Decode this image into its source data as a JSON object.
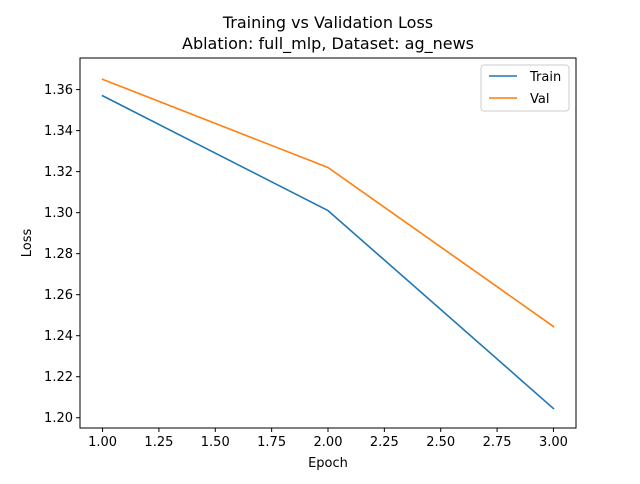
{
  "chart_data": {
    "type": "line",
    "title": "Training vs Validation Loss",
    "subtitle": "Ablation: full_mlp, Dataset: ag_news",
    "xlabel": "Epoch",
    "ylabel": "Loss",
    "x": [
      1.0,
      2.0,
      3.0
    ],
    "series": [
      {
        "name": "Train",
        "color": "#1f77b4",
        "values": [
          1.357,
          1.301,
          1.2045
        ]
      },
      {
        "name": "Val",
        "color": "#ff7f0e",
        "values": [
          1.365,
          1.322,
          1.2445
        ]
      }
    ],
    "xlim": [
      0.9,
      3.1
    ],
    "ylim": [
      1.195,
      1.3754
    ],
    "xticks": [
      1.0,
      1.25,
      1.5,
      1.75,
      2.0,
      2.25,
      2.5,
      2.75,
      3.0
    ],
    "xtick_labels": [
      "1.00",
      "1.25",
      "1.50",
      "1.75",
      "2.00",
      "2.25",
      "2.50",
      "2.75",
      "3.00"
    ],
    "yticks": [
      1.2,
      1.22,
      1.24,
      1.26,
      1.28,
      1.3,
      1.32,
      1.34,
      1.36
    ],
    "ytick_labels": [
      "1.20",
      "1.22",
      "1.24",
      "1.26",
      "1.28",
      "1.30",
      "1.32",
      "1.34",
      "1.36"
    ],
    "grid": false,
    "legend_position": "top-right"
  }
}
